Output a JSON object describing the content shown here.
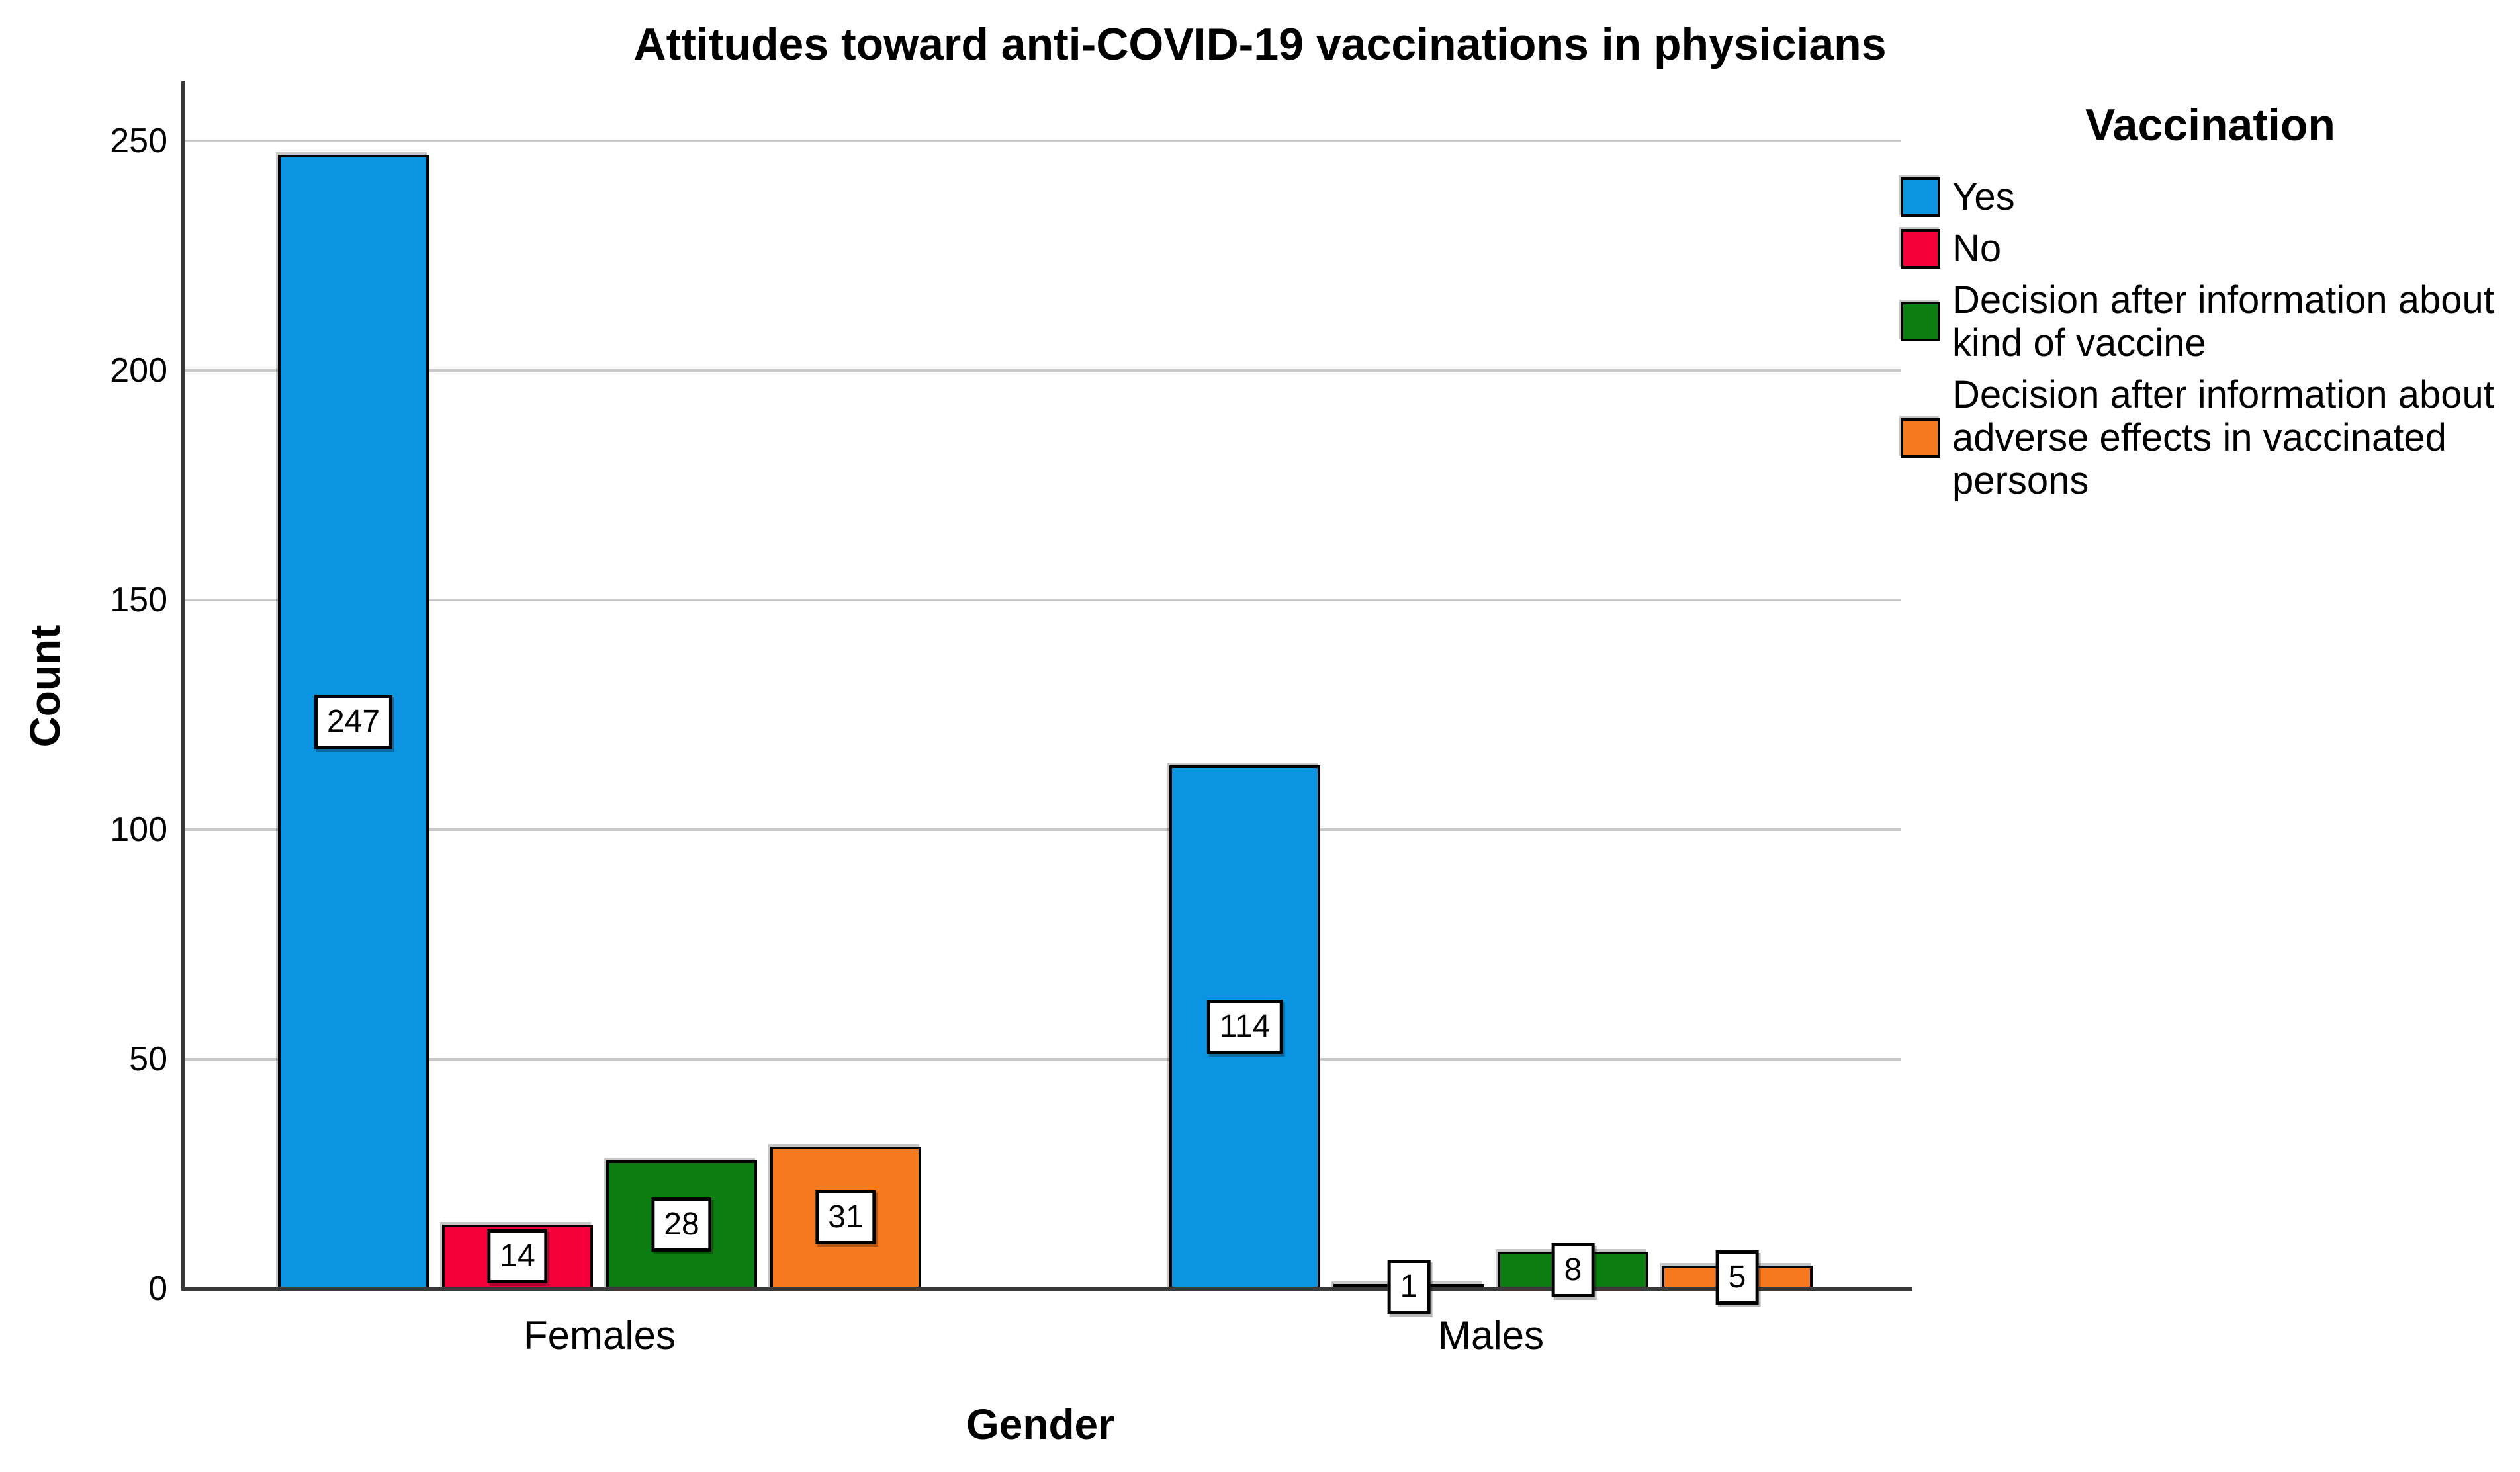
{
  "chart_data": {
    "type": "bar",
    "title": "Attitudes toward anti-COVID-19 vaccinations in physicians",
    "xlabel": "Gender",
    "ylabel": "Count",
    "categories": [
      "Females",
      "Males"
    ],
    "series": [
      {
        "name": "Yes",
        "color": "#0B94E2",
        "values": [
          247,
          114
        ]
      },
      {
        "name": "No",
        "color": "#F6003C",
        "values": [
          14,
          1
        ]
      },
      {
        "name": "Decision after information about kind of vaccine",
        "color": "#0C7D10",
        "values": [
          28,
          8
        ]
      },
      {
        "name": "Decision after information about adverse effects in vaccinated persons",
        "color": "#F6791E",
        "values": [
          31,
          5
        ]
      }
    ],
    "ylim": [
      0,
      263
    ],
    "yticks": [
      0,
      50,
      100,
      150,
      200,
      250
    ],
    "grid": "horizontal",
    "gridline_color": "#C8C8C8",
    "axis_color": "#3A3A3A",
    "legend": {
      "title": "Vaccination",
      "position": "right",
      "labels": [
        "Yes",
        "No",
        "Decision after information about\nkind of vaccine",
        "Decision after information about\nadverse effects in vaccinated\npersons"
      ]
    }
  }
}
